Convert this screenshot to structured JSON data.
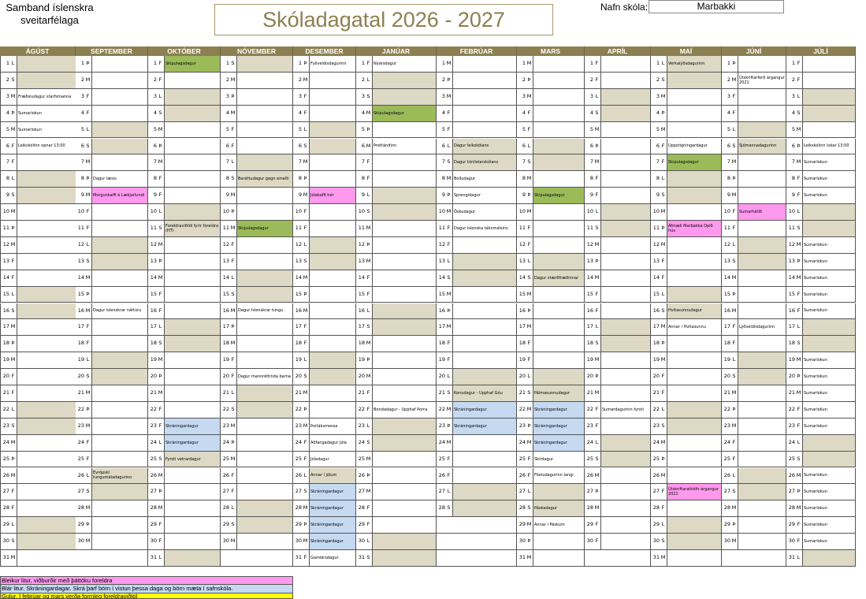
{
  "org_line1": "Samband íslenskra",
  "org_line2": "sveitarfélaga",
  "title": "Skóladagatal 2026 - 2027",
  "school_label": "Nafn skóla:",
  "school_name": "Marbakki",
  "colors": {
    "header": "#8c8052",
    "tan": "#ddd9c4",
    "green": "#9bbb59",
    "pink": "#ff99ee",
    "blue": "#c5d9f1",
    "yellow": "#ffff00"
  },
  "months": [
    {
      "name": "ÁGÚST",
      "start": 6,
      "days": 31
    },
    {
      "name": "SEPTEMBER",
      "start": 2,
      "days": 30
    },
    {
      "name": "OKTÓBER",
      "start": 4,
      "days": 31
    },
    {
      "name": "NÓVEMBER",
      "start": 0,
      "days": 30
    },
    {
      "name": "DESEMBER",
      "start": 2,
      "days": 31
    },
    {
      "name": "JANÚAR",
      "start": 5,
      "days": 31
    },
    {
      "name": "FEBRÚAR",
      "start": 1,
      "days": 28
    },
    {
      "name": "MARS",
      "start": 1,
      "days": 31
    },
    {
      "name": "APRÍL",
      "start": 4,
      "days": 30
    },
    {
      "name": "MAÍ",
      "start": 6,
      "days": 31
    },
    {
      "name": "JÚNÍ",
      "start": 2,
      "days": 30
    },
    {
      "name": "JÚLÍ",
      "start": 4,
      "days": 31
    }
  ],
  "weekday_letters": [
    "S",
    "M",
    "Þ",
    "M",
    "F",
    "F",
    "L"
  ],
  "events": [
    {
      "m": 0,
      "d": 3,
      "t": "Fræðsludagur starfsmanna",
      "c": "white"
    },
    {
      "m": 0,
      "d": 4,
      "t": "Sumarlokun",
      "c": "white"
    },
    {
      "m": 0,
      "d": 5,
      "t": "Sumarlokun",
      "c": "white"
    },
    {
      "m": 0,
      "d": 6,
      "t": "Leikskólinn opnar 13:00",
      "c": "white"
    },
    {
      "m": 1,
      "d": 8,
      "t": "Dagur læsis",
      "c": "white"
    },
    {
      "m": 1,
      "d": 9,
      "t": "Morgunkaffi á Lækjarlundi",
      "c": "pink"
    },
    {
      "m": 1,
      "d": 16,
      "t": "Dagur íslenskrar náttúru",
      "c": "white"
    },
    {
      "m": 1,
      "d": 26,
      "t": "Evrópski tungumáladagurinn",
      "c": "white"
    },
    {
      "m": 2,
      "d": 1,
      "t": "Skipulagsdagur",
      "c": "green"
    },
    {
      "m": 2,
      "d": 11,
      "t": "Foreldraviðtöl fyrir foreldra (HT)",
      "c": "white"
    },
    {
      "m": 2,
      "d": 23,
      "t": "Skráningardagur",
      "c": "blue"
    },
    {
      "m": 2,
      "d": 24,
      "t": "Skráningardagur",
      "c": "blue"
    },
    {
      "m": 2,
      "d": 25,
      "t": "Fyrsti vetrardagur",
      "c": "white"
    },
    {
      "m": 3,
      "d": 8,
      "t": "Baráttudagur gegn einelti",
      "c": "white"
    },
    {
      "m": 3,
      "d": 11,
      "t": "Skipulagsdagur",
      "c": "green"
    },
    {
      "m": 3,
      "d": 16,
      "t": "Dagur íslenskrar tungu",
      "c": "white"
    },
    {
      "m": 3,
      "d": 20,
      "t": "Dagur mannréttinda barna",
      "c": "white"
    },
    {
      "m": 4,
      "d": 1,
      "t": "Fullveldisdagurinn",
      "c": "white"
    },
    {
      "m": 4,
      "d": 9,
      "t": "Jólakaffi hér",
      "c": "pink"
    },
    {
      "m": 4,
      "d": 23,
      "t": "Þorláksmessa",
      "c": "white"
    },
    {
      "m": 4,
      "d": 24,
      "t": "Aðfangadagur jóla",
      "c": "white"
    },
    {
      "m": 4,
      "d": 25,
      "t": "Jóladagur",
      "c": "white"
    },
    {
      "m": 4,
      "d": 26,
      "t": "Annar í jólum",
      "c": "white"
    },
    {
      "m": 4,
      "d": 27,
      "t": "Skráningardagur",
      "c": "blue"
    },
    {
      "m": 4,
      "d": 28,
      "t": "Skráningardagur",
      "c": "blue"
    },
    {
      "m": 4,
      "d": 29,
      "t": "Skráningardagur",
      "c": "blue"
    },
    {
      "m": 4,
      "d": 30,
      "t": "Skráningardagur",
      "c": "blue"
    },
    {
      "m": 4,
      "d": 31,
      "t": "Gamlársdagur",
      "c": "white"
    },
    {
      "m": 5,
      "d": 1,
      "t": "Nýársdagur",
      "c": "white"
    },
    {
      "m": 5,
      "d": 4,
      "t": "Skipulagsdagur",
      "c": "green"
    },
    {
      "m": 5,
      "d": 6,
      "t": "Þrettándinn",
      "c": "white"
    },
    {
      "m": 5,
      "d": 22,
      "t": "Bóndadagur - Upphaf Þorra",
      "c": "white"
    },
    {
      "m": 6,
      "d": 6,
      "t": "Dagur leikskólans",
      "c": "white"
    },
    {
      "m": 6,
      "d": 7,
      "t": "Dagur tónlistarskólans",
      "c": "white"
    },
    {
      "m": 6,
      "d": 8,
      "t": "Bolludagur",
      "c": "white"
    },
    {
      "m": 6,
      "d": 9,
      "t": "Sprengidagur",
      "c": "white"
    },
    {
      "m": 6,
      "d": 10,
      "t": "Öskudagur",
      "c": "white"
    },
    {
      "m": 6,
      "d": 11,
      "t": "Dagur íslenska táknmálsins",
      "c": "white"
    },
    {
      "m": 6,
      "d": 21,
      "t": "Konudagur - Upphaf Góu",
      "c": "white"
    },
    {
      "m": 6,
      "d": 22,
      "t": "Skráningardagur",
      "c": "blue"
    },
    {
      "m": 6,
      "d": 23,
      "t": "Skráningardagur",
      "c": "blue"
    },
    {
      "m": 7,
      "d": 9,
      "t": "Skipulagsdagur",
      "c": "green"
    },
    {
      "m": 7,
      "d": 14,
      "t": "Dagur stærðfræðinnar",
      "c": "white"
    },
    {
      "m": 7,
      "d": 21,
      "t": "Pálmasunnudagur",
      "c": "white"
    },
    {
      "m": 7,
      "d": 22,
      "t": "Skráningardagur",
      "c": "blue"
    },
    {
      "m": 7,
      "d": 23,
      "t": "Skráningardagur",
      "c": "blue"
    },
    {
      "m": 7,
      "d": 24,
      "t": "Skráningardagur",
      "c": "blue"
    },
    {
      "m": 7,
      "d": 25,
      "t": "Skírdagur",
      "c": "white"
    },
    {
      "m": 7,
      "d": 26,
      "t": "Föstudagurinn langi",
      "c": "white"
    },
    {
      "m": 7,
      "d": 28,
      "t": "Páskadagur",
      "c": "white"
    },
    {
      "m": 7,
      "d": 29,
      "t": "Annar í Páskum",
      "c": "white"
    },
    {
      "m": 8,
      "d": 22,
      "t": "Sumardagurinn fyrsti",
      "c": "white"
    },
    {
      "m": 9,
      "d": 1,
      "t": "Verkalýðsdagurinn",
      "c": "white"
    },
    {
      "m": 9,
      "d": 6,
      "t": "Uppstigningardagur",
      "c": "white"
    },
    {
      "m": 9,
      "d": 7,
      "t": "Skipulagsdagur",
      "c": "green"
    },
    {
      "m": 9,
      "d": 11,
      "t": "Afmæli Marbakka Opið hús",
      "c": "pink"
    },
    {
      "m": 9,
      "d": 16,
      "t": "Hvítasunnudagur",
      "c": "white"
    },
    {
      "m": 9,
      "d": 17,
      "t": "Annar í Hvítasunnu",
      "c": "white"
    },
    {
      "m": 9,
      "d": 27,
      "t": "Útskriftarathöfn árgangur 2021",
      "c": "pink"
    },
    {
      "m": 10,
      "d": 2,
      "t": "Útskriftarferð árgangur 2021",
      "c": "white"
    },
    {
      "m": 10,
      "d": 6,
      "t": "Sjómannadagurinn",
      "c": "white"
    },
    {
      "m": 10,
      "d": 10,
      "t": "Sumarhátíð",
      "c": "pink"
    },
    {
      "m": 10,
      "d": 17,
      "t": "Lýðveldisdagurinn",
      "c": "white"
    },
    {
      "m": 11,
      "d": 6,
      "t": "Leikskólinn lokar 13:00",
      "c": "white"
    },
    {
      "m": 11,
      "d": 7,
      "t": "Sumarlokun",
      "c": "white"
    },
    {
      "m": 11,
      "d": 8,
      "t": "Sumarlokun",
      "c": "white"
    },
    {
      "m": 11,
      "d": 9,
      "t": "Sumarlokun",
      "c": "white"
    },
    {
      "m": 11,
      "d": 12,
      "t": "Sumarlokun",
      "c": "white"
    },
    {
      "m": 11,
      "d": 13,
      "t": "Sumarlokun",
      "c": "white"
    },
    {
      "m": 11,
      "d": 14,
      "t": "Sumarlokun",
      "c": "white"
    },
    {
      "m": 11,
      "d": 15,
      "t": "Sumarlokun",
      "c": "white"
    },
    {
      "m": 11,
      "d": 16,
      "t": "Sumarlokun",
      "c": "white"
    },
    {
      "m": 11,
      "d": 19,
      "t": "Sumarlokun",
      "c": "white"
    },
    {
      "m": 11,
      "d": 20,
      "t": "Sumarlokun",
      "c": "white"
    },
    {
      "m": 11,
      "d": 21,
      "t": "Sumarlokun",
      "c": "white"
    },
    {
      "m": 11,
      "d": 22,
      "t": "Sumarlokun",
      "c": "white"
    },
    {
      "m": 11,
      "d": 23,
      "t": "Sumarlokun",
      "c": "white"
    },
    {
      "m": 11,
      "d": 26,
      "t": "Sumarlokun",
      "c": "white"
    },
    {
      "m": 11,
      "d": 27,
      "t": "Sumarlokun",
      "c": "white"
    },
    {
      "m": 11,
      "d": 28,
      "t": "Sumarlokun",
      "c": "white"
    },
    {
      "m": 11,
      "d": 29,
      "t": "Sumarlokun",
      "c": "white"
    },
    {
      "m": 11,
      "d": 30,
      "t": "Sumarlokun",
      "c": "white"
    }
  ],
  "legend": [
    "Bleikur litur, viðburðir með þáttöku foreldra",
    "Blár litur. Skráningardagar. Skrá þarf börn í vistun þessa daga og börn mæta í safnskóla.",
    "Gulur. Í febrúar og mars verða formleg foreldraviðtöl"
  ]
}
